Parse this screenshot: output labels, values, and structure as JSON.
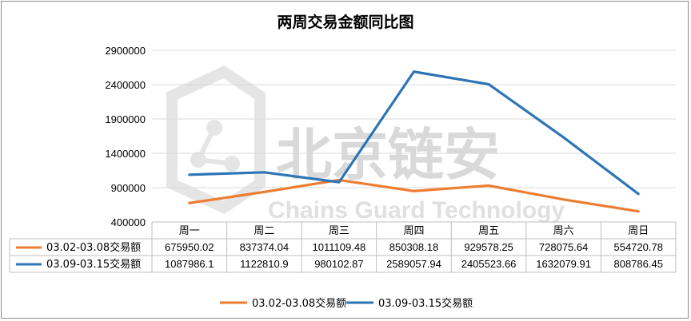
{
  "chart_data": {
    "type": "line",
    "title": "两周交易金额同比图",
    "categories": [
      "周一",
      "周二",
      "周三",
      "周四",
      "周五",
      "周六",
      "周日"
    ],
    "ylim": [
      400000,
      2900000
    ],
    "yticks": [
      "400000",
      "900000",
      "1400000",
      "1900000",
      "2400000",
      "2900000"
    ],
    "ytick_values": [
      400000,
      900000,
      1400000,
      1900000,
      2400000,
      2900000
    ],
    "grid": true,
    "legend_position": "bottom",
    "series": [
      {
        "name": "03.02-03.08交易额",
        "color": "#ed7d31",
        "values": [
          675950.02,
          837374.04,
          1011109.48,
          850308.18,
          929578.25,
          728075.64,
          554720.78
        ],
        "labels": [
          "675950.02",
          "837374.04",
          "1011109.48",
          "850308.18",
          "929578.25",
          "728075.64",
          "554720.78"
        ]
      },
      {
        "name": "03.09-03.15交易额",
        "color": "#2e75b6",
        "values": [
          1087986.1,
          1122810.9,
          980102.87,
          2589057.94,
          2405523.66,
          1632079.91,
          808786.45
        ],
        "labels": [
          "1087986.1",
          "1122810.9",
          "980102.87",
          "2589057.94",
          "2405523.66",
          "1632079.91",
          "808786.45"
        ]
      }
    ]
  },
  "watermark": {
    "text_cn": "北京链安",
    "text_en": "Chains Guard Technology"
  }
}
